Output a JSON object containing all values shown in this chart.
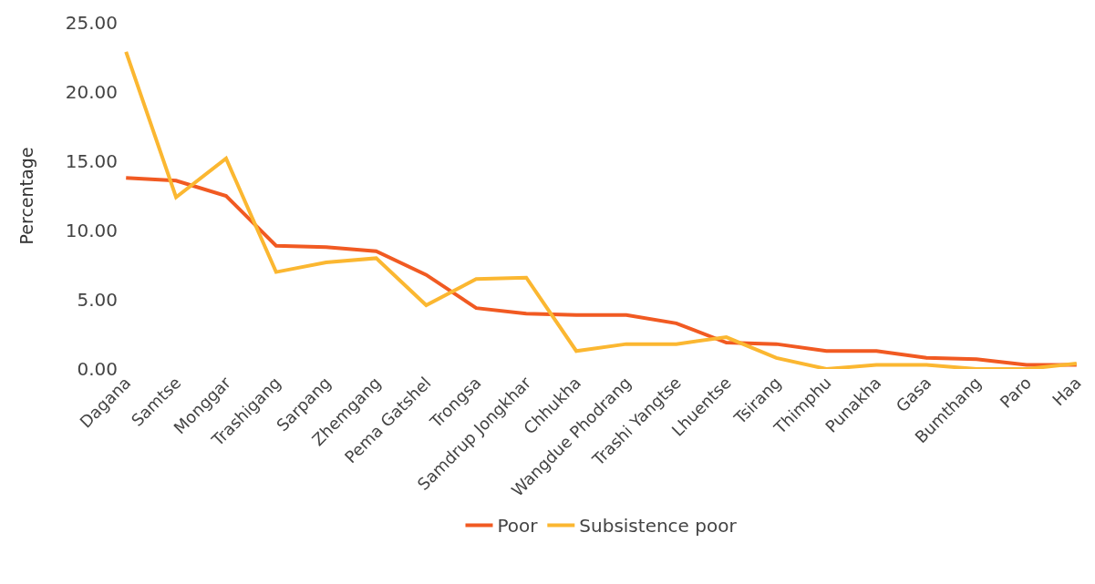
{
  "chart_data": {
    "type": "line",
    "ylabel": "Percentage",
    "categories": [
      "Dagana",
      "Samtse",
      "Monggar",
      "Trashigang",
      "Sarpang",
      "Zhemgang",
      "Pema Gatshel",
      "Trongsa",
      "Samdrup Jongkhar",
      "Chhukha",
      "Wangdue Phodrang",
      "Trashi Yangtse",
      "Lhuentse",
      "Tsirang",
      "Thimphu",
      "Punakha",
      "Gasa",
      "Bumthang",
      "Paro",
      "Haa"
    ],
    "series": [
      {
        "name": "Poor",
        "color": "#f15a22",
        "values": [
          13.8,
          13.6,
          12.5,
          8.9,
          8.8,
          8.5,
          6.8,
          4.4,
          4.0,
          3.9,
          3.9,
          3.3,
          1.9,
          1.8,
          1.3,
          1.3,
          0.8,
          0.7,
          0.3,
          0.3
        ]
      },
      {
        "name": "Subsistence poor",
        "color": "#fbb731",
        "values": [
          22.9,
          12.4,
          15.2,
          7.0,
          7.7,
          8.0,
          4.6,
          6.5,
          6.6,
          1.3,
          1.8,
          1.8,
          2.3,
          0.8,
          0.0,
          0.3,
          0.3,
          0.0,
          0.0,
          0.4
        ]
      }
    ],
    "ylim": [
      0,
      25
    ],
    "yticks": [
      {
        "value": 0,
        "label": "0.00"
      },
      {
        "value": 5,
        "label": "5.00"
      },
      {
        "value": 10,
        "label": "10.00"
      },
      {
        "value": 15,
        "label": "15.00"
      },
      {
        "value": 20,
        "label": "20.00"
      },
      {
        "value": 25,
        "label": "25.00"
      }
    ],
    "legend": "bottom",
    "line_style": "solid"
  }
}
